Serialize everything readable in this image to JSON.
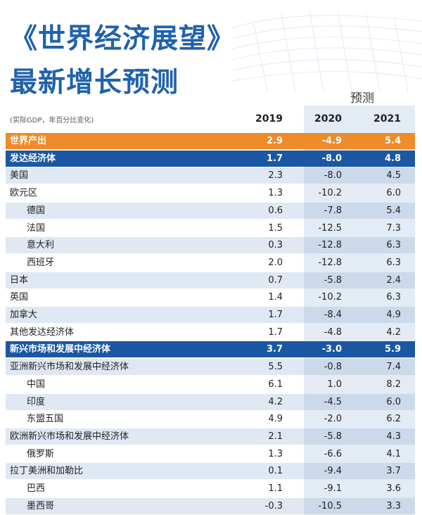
{
  "header": {
    "title": "《世界经济展望》",
    "subtitle": "最新增长预测"
  },
  "table": {
    "unit": "(实际GDP，年百分比变化)",
    "forecast_label": "预测",
    "columns": [
      "2019",
      "2020",
      "2021"
    ],
    "rows": [
      {
        "kind": "world",
        "label": "世界产出",
        "values": [
          "2.9",
          "-4.9",
          "5.4"
        ]
      },
      {
        "kind": "group",
        "label": "发达经济体",
        "values": [
          "1.7",
          "-8.0",
          "4.8"
        ]
      },
      {
        "kind": "country",
        "label": "美国",
        "values": [
          "2.3",
          "-8.0",
          "4.5"
        ]
      },
      {
        "kind": "country",
        "label": "欧元区",
        "values": [
          "1.3",
          "-10.2",
          "6.0"
        ]
      },
      {
        "kind": "sub",
        "label": "德国",
        "values": [
          "0.6",
          "-7.8",
          "5.4"
        ]
      },
      {
        "kind": "sub",
        "label": "法国",
        "values": [
          "1.5",
          "-12.5",
          "7.3"
        ]
      },
      {
        "kind": "sub",
        "label": "意大利",
        "values": [
          "0.3",
          "-12.8",
          "6.3"
        ]
      },
      {
        "kind": "sub",
        "label": "西班牙",
        "values": [
          "2.0",
          "-12.8",
          "6.3"
        ]
      },
      {
        "kind": "country",
        "label": "日本",
        "values": [
          "0.7",
          "-5.8",
          "2.4"
        ]
      },
      {
        "kind": "country",
        "label": "英国",
        "values": [
          "1.4",
          "-10.2",
          "6.3"
        ]
      },
      {
        "kind": "country",
        "label": "加拿大",
        "values": [
          "1.7",
          "-8.4",
          "4.9"
        ]
      },
      {
        "kind": "country",
        "label": "其他发达经济体",
        "values": [
          "1.7",
          "-4.8",
          "4.2"
        ]
      },
      {
        "kind": "group",
        "label": "新兴市场和发展中经济体",
        "values": [
          "3.7",
          "-3.0",
          "5.9"
        ]
      },
      {
        "kind": "country",
        "label": "亚洲新兴市场和发展中经济体",
        "values": [
          "5.5",
          "-0.8",
          "7.4"
        ]
      },
      {
        "kind": "sub",
        "label": "中国",
        "values": [
          "6.1",
          "1.0",
          "8.2"
        ]
      },
      {
        "kind": "sub",
        "label": "印度",
        "values": [
          "4.2",
          "-4.5",
          "6.0"
        ]
      },
      {
        "kind": "sub",
        "label": "东盟五国",
        "values": [
          "4.9",
          "-2.0",
          "6.2"
        ]
      },
      {
        "kind": "country",
        "label": "欧洲新兴市场和发展中经济体",
        "values": [
          "2.1",
          "-5.8",
          "4.3"
        ]
      },
      {
        "kind": "sub",
        "label": "俄罗斯",
        "values": [
          "1.3",
          "-6.6",
          "4.1"
        ]
      },
      {
        "kind": "country",
        "label": "拉丁美洲和加勒比",
        "values": [
          "0.1",
          "-9.4",
          "3.7"
        ]
      },
      {
        "kind": "sub",
        "label": "巴西",
        "values": [
          "1.1",
          "-9.1",
          "3.6"
        ]
      },
      {
        "kind": "sub",
        "label": "墨西哥",
        "values": [
          "-0.3",
          "-10.5",
          "3.3"
        ]
      }
    ]
  }
}
